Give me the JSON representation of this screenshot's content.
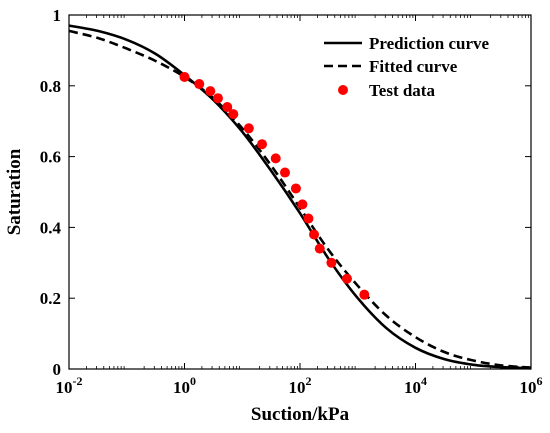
{
  "chart_data": {
    "type": "scatter",
    "xlabel": "Suction/kPa",
    "ylabel": "Saturation",
    "xscale": "log",
    "xlim": [
      0.01,
      1000000
    ],
    "ylim": [
      0,
      1
    ],
    "grid": false,
    "legend_position": "top-right",
    "x_ticks": [
      {
        "value": 0.01,
        "base": "10",
        "exp": "-2"
      },
      {
        "value": 1,
        "base": "10",
        "exp": "0"
      },
      {
        "value": 100,
        "base": "10",
        "exp": "2"
      },
      {
        "value": 10000,
        "base": "10",
        "exp": "4"
      },
      {
        "value": 1000000,
        "base": "10",
        "exp": "6"
      }
    ],
    "y_ticks": [
      {
        "value": 0,
        "label": "0"
      },
      {
        "value": 0.2,
        "label": "0.2"
      },
      {
        "value": 0.4,
        "label": "0.4"
      },
      {
        "value": 0.6,
        "label": "0.6"
      },
      {
        "value": 0.8,
        "label": "0.8"
      },
      {
        "value": 1,
        "label": "1"
      }
    ],
    "series": [
      {
        "name": "Prediction curve",
        "style": "solid",
        "color": "#000000",
        "x": [
          0.01,
          0.0316,
          0.1,
          0.316,
          1,
          3.16,
          10,
          31.6,
          100,
          316,
          1000,
          3160,
          10000,
          31600,
          100000,
          316000,
          1000000
        ],
        "y": [
          0.97,
          0.955,
          0.93,
          0.89,
          0.83,
          0.76,
          0.67,
          0.56,
          0.44,
          0.31,
          0.2,
          0.115,
          0.06,
          0.028,
          0.012,
          0.005,
          0.002
        ]
      },
      {
        "name": "Fitted curve",
        "style": "dashed",
        "color": "#000000",
        "x": [
          0.01,
          0.0316,
          0.1,
          0.316,
          1,
          3.16,
          10,
          31.6,
          100,
          316,
          1000,
          3160,
          10000,
          31600,
          100000,
          316000,
          1000000
        ],
        "y": [
          0.955,
          0.935,
          0.905,
          0.87,
          0.825,
          0.765,
          0.68,
          0.575,
          0.455,
          0.335,
          0.235,
          0.15,
          0.09,
          0.048,
          0.024,
          0.01,
          0.004
        ]
      },
      {
        "name": "Test data",
        "style": "markers",
        "color": "#ff0000",
        "x": [
          1,
          1.8,
          2.8,
          3.8,
          5.5,
          7,
          13,
          22,
          38,
          55,
          85,
          110,
          140,
          175,
          220,
          350,
          650,
          1300
        ],
        "y": [
          0.825,
          0.805,
          0.785,
          0.765,
          0.74,
          0.72,
          0.68,
          0.635,
          0.595,
          0.555,
          0.51,
          0.465,
          0.425,
          0.38,
          0.34,
          0.3,
          0.255,
          0.21
        ]
      }
    ]
  }
}
